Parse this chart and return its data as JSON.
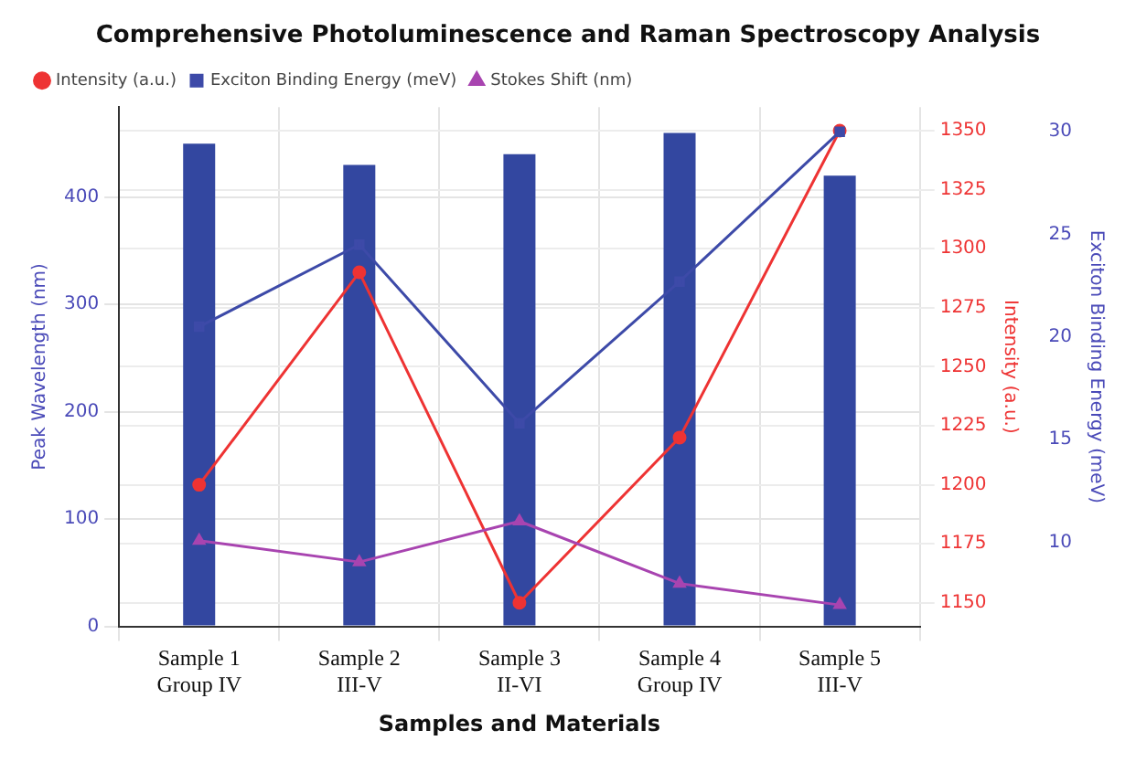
{
  "chart_data": {
    "type": "bar",
    "title": "Comprehensive Photoluminescence and Raman Spectroscopy Analysis",
    "xlabel": "Samples and Materials",
    "ylabel": "Peak Wavelength (nm)",
    "y2label": "Intensity (a.u.)",
    "y3label": "Exciton Binding Energy (meV)",
    "categories": [
      "Sample 1\nGroup IV",
      "Sample 2\nIII-V",
      "Sample 3\nII-VI",
      "Sample 4\nGroup IV",
      "Sample 5\nIII-V"
    ],
    "series": [
      {
        "color": "#3347a0",
        "values": [
          450,
          430,
          440,
          460,
          420
        ]
      },
      {
        "type": "line",
        "name": "Intensity (a.u.)",
        "color": "#ee3333",
        "axis": "y2",
        "marker": "circle",
        "values": [
          1200,
          1290,
          1150,
          1220,
          1350
        ]
      },
      {
        "type": "line",
        "name": "Exciton Binding Energy (meV)",
        "color": "#3d4aa8",
        "axis": "y3",
        "marker": "square",
        "values": [
          20.5,
          24.5,
          15.8,
          22.7,
          30
        ]
      },
      {
        "type": "line",
        "name": "Stokes Shift (nm)",
        "color": "#a844b0",
        "marker": "triangle",
        "values": [
          80,
          60,
          98,
          40,
          20
        ]
      }
    ],
    "ylim": [
      0,
      484
    ],
    "yticks": [
      0,
      100,
      200,
      300,
      400
    ],
    "y2lim": [
      1140,
      1360
    ],
    "y2ticks": [
      1150,
      1175,
      1200,
      1225,
      1250,
      1275,
      1300,
      1325,
      1350
    ],
    "y3lim": [
      5.9,
      31.2
    ],
    "y3ticks": [
      10,
      15,
      20,
      25,
      30
    ],
    "grid": true,
    "legend": "top left"
  }
}
